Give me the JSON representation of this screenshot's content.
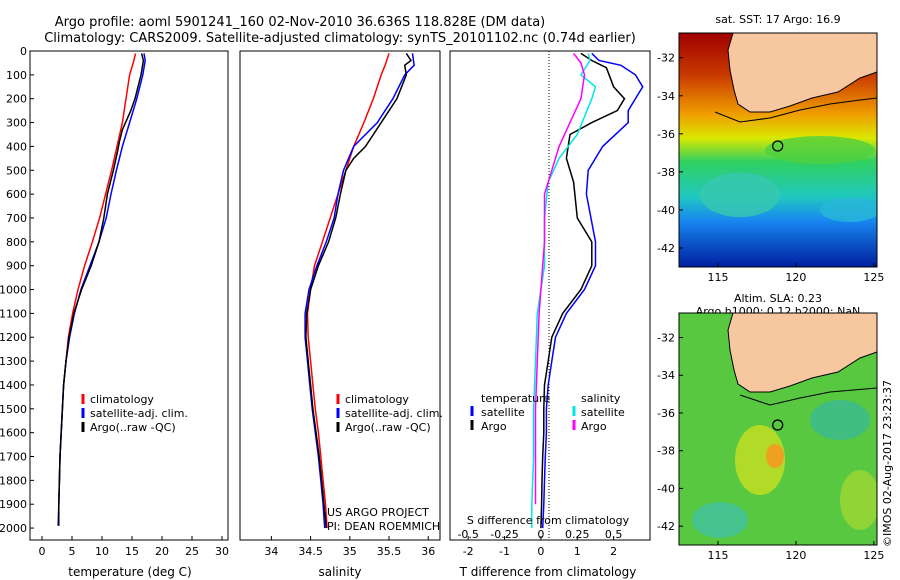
{
  "header": {
    "title": "Argo profile: aoml 5901241_160 02-Nov-2010 36.636S 118.828E (DM data)",
    "subtitle": "Climatology: CARS2009. Satellite-adjusted climatology: synTS_20101102.nc (0.74d earlier)"
  },
  "colors": {
    "climatology": "#ff0000",
    "satellite": "#0000ff",
    "argo": "#000000",
    "sal_satellite": "#00e6e6",
    "sal_argo": "#ff00ff",
    "land": "#f7c8a0"
  },
  "chart_data": [
    {
      "type": "line",
      "xlabel": "temperature (deg C)",
      "ylabel": "",
      "xlim": [
        -2,
        31
      ],
      "ylim": [
        2050,
        0
      ],
      "xticks": [
        "0",
        "5",
        "10",
        "15",
        "20",
        "25",
        "30"
      ],
      "yticks": [
        "0",
        "100",
        "200",
        "300",
        "400",
        "500",
        "600",
        "700",
        "800",
        "900",
        "1000",
        "1100",
        "1200",
        "1300",
        "1400",
        "1500",
        "1600",
        "1700",
        "1800",
        "1900",
        "2000"
      ],
      "legend": [
        "climatology",
        "satellite-adj. clim.",
        "Argo(..raw -QC)"
      ],
      "series": [
        {
          "name": "climatology",
          "points": [
            [
              15.6,
              10
            ],
            [
              15.2,
              50
            ],
            [
              14.6,
              100
            ],
            [
              14.0,
              200
            ],
            [
              13.4,
              300
            ],
            [
              12.5,
              400
            ],
            [
              11.6,
              500
            ],
            [
              10.6,
              600
            ],
            [
              9.6,
              700
            ],
            [
              8.4,
              800
            ],
            [
              7.1,
              900
            ],
            [
              6.0,
              1000
            ],
            [
              5.1,
              1100
            ],
            [
              4.4,
              1200
            ],
            [
              4.0,
              1300
            ],
            [
              3.6,
              1400
            ],
            [
              3.4,
              1500
            ],
            [
              3.2,
              1600
            ],
            [
              3.0,
              1700
            ],
            [
              2.9,
              1800
            ],
            [
              2.8,
              1900
            ],
            [
              2.8,
              1990
            ]
          ]
        },
        {
          "name": "satellite-adj. clim.",
          "points": [
            [
              17.0,
              10
            ],
            [
              17.2,
              40
            ],
            [
              16.8,
              100
            ],
            [
              15.8,
              200
            ],
            [
              14.6,
              300
            ],
            [
              13.4,
              400
            ],
            [
              12.4,
              500
            ],
            [
              11.5,
              600
            ],
            [
              10.7,
              700
            ],
            [
              9.5,
              800
            ],
            [
              8.0,
              900
            ],
            [
              6.5,
              1000
            ],
            [
              5.4,
              1100
            ],
            [
              4.6,
              1200
            ],
            [
              4.0,
              1300
            ],
            [
              3.6,
              1400
            ],
            [
              3.4,
              1500
            ],
            [
              3.2,
              1600
            ],
            [
              3.0,
              1700
            ],
            [
              2.9,
              1800
            ],
            [
              2.8,
              1900
            ],
            [
              2.8,
              1990
            ]
          ]
        },
        {
          "name": "Argo(..raw -QC)",
          "points": [
            [
              16.6,
              10
            ],
            [
              16.9,
              40
            ],
            [
              16.5,
              100
            ],
            [
              15.5,
              200
            ],
            [
              14.8,
              250
            ],
            [
              13.4,
              330
            ],
            [
              12.9,
              380
            ],
            [
              12.6,
              420
            ],
            [
              11.9,
              500
            ],
            [
              10.9,
              600
            ],
            [
              10.3,
              700
            ],
            [
              9.5,
              800
            ],
            [
              8.2,
              900
            ],
            [
              6.6,
              1000
            ],
            [
              5.3,
              1100
            ],
            [
              4.5,
              1200
            ],
            [
              4.0,
              1300
            ],
            [
              3.6,
              1400
            ],
            [
              3.4,
              1500
            ],
            [
              3.2,
              1600
            ],
            [
              3.0,
              1700
            ],
            [
              2.9,
              1800
            ],
            [
              2.8,
              1900
            ],
            [
              2.7,
              1990
            ]
          ]
        }
      ]
    },
    {
      "type": "line",
      "xlabel": "salinity",
      "ylabel": "",
      "xlim": [
        33.6,
        36.15
      ],
      "ylim": [
        2050,
        0
      ],
      "xticks": [
        "34",
        "34.5",
        "35",
        "35.5",
        "36"
      ],
      "legend": [
        "climatology",
        "satellite-adj. clim.",
        "Argo(..raw -QC)"
      ],
      "annotation": [
        "US ARGO PROJECT",
        "PI: DEAN ROEMMICH"
      ],
      "series": [
        {
          "name": "climatology",
          "points": [
            [
              35.5,
              10
            ],
            [
              35.45,
              60
            ],
            [
              35.4,
              100
            ],
            [
              35.3,
              200
            ],
            [
              35.18,
              300
            ],
            [
              35.05,
              400
            ],
            [
              34.95,
              500
            ],
            [
              34.85,
              600
            ],
            [
              34.75,
              700
            ],
            [
              34.65,
              800
            ],
            [
              34.55,
              900
            ],
            [
              34.5,
              1000
            ],
            [
              34.46,
              1100
            ],
            [
              34.47,
              1200
            ],
            [
              34.5,
              1300
            ],
            [
              34.53,
              1400
            ],
            [
              34.56,
              1500
            ],
            [
              34.6,
              1600
            ],
            [
              34.63,
              1700
            ],
            [
              34.66,
              1800
            ],
            [
              34.69,
              1900
            ],
            [
              34.71,
              2000
            ]
          ]
        },
        {
          "name": "satellite-adj. clim.",
          "points": [
            [
              35.8,
              10
            ],
            [
              35.82,
              60
            ],
            [
              35.7,
              100
            ],
            [
              35.55,
              200
            ],
            [
              35.35,
              300
            ],
            [
              35.05,
              400
            ],
            [
              34.92,
              500
            ],
            [
              34.85,
              600
            ],
            [
              34.8,
              700
            ],
            [
              34.7,
              800
            ],
            [
              34.58,
              900
            ],
            [
              34.48,
              1000
            ],
            [
              34.43,
              1100
            ],
            [
              34.43,
              1200
            ],
            [
              34.46,
              1300
            ],
            [
              34.49,
              1400
            ],
            [
              34.52,
              1500
            ],
            [
              34.56,
              1600
            ],
            [
              34.6,
              1700
            ],
            [
              34.63,
              1800
            ],
            [
              34.66,
              1900
            ],
            [
              34.68,
              2000
            ]
          ]
        },
        {
          "name": "Argo(..raw -QC)",
          "points": [
            [
              35.72,
              10
            ],
            [
              35.78,
              40
            ],
            [
              35.7,
              60
            ],
            [
              35.72,
              100
            ],
            [
              35.6,
              200
            ],
            [
              35.4,
              300
            ],
            [
              35.2,
              400
            ],
            [
              35.05,
              450
            ],
            [
              34.95,
              500
            ],
            [
              34.88,
              600
            ],
            [
              34.82,
              700
            ],
            [
              34.73,
              800
            ],
            [
              34.6,
              900
            ],
            [
              34.5,
              1000
            ],
            [
              34.45,
              1100
            ],
            [
              34.44,
              1200
            ],
            [
              34.47,
              1300
            ],
            [
              34.5,
              1400
            ],
            [
              34.53,
              1500
            ],
            [
              34.57,
              1600
            ],
            [
              34.61,
              1700
            ],
            [
              34.64,
              1800
            ],
            [
              34.67,
              1900
            ],
            [
              34.7,
              2000
            ]
          ]
        }
      ]
    },
    {
      "type": "line",
      "xlabel": "T difference from climatology",
      "toplabel": "S difference from climatology",
      "xlim": [
        -2.5,
        3.0
      ],
      "ylim": [
        2050,
        0
      ],
      "xticks": [
        "-2",
        "-1",
        "0",
        "1",
        "2"
      ],
      "sticks": [
        "-0.5",
        "-0.25",
        "0",
        "0.25",
        "0.5"
      ],
      "legend_headers": [
        "temperature",
        "salinity"
      ],
      "legend": [
        "satellite",
        "Argo",
        "satellite",
        "Argo"
      ],
      "series": [
        {
          "name": "satellite",
          "points": [
            [
              1.4,
              10
            ],
            [
              1.6,
              40
            ],
            [
              2.2,
              60
            ],
            [
              2.6,
              100
            ],
            [
              2.8,
              150
            ],
            [
              2.4,
              250
            ],
            [
              2.4,
              300
            ],
            [
              1.7,
              400
            ],
            [
              1.3,
              500
            ],
            [
              1.25,
              600
            ],
            [
              1.5,
              800
            ],
            [
              1.5,
              900
            ],
            [
              1.2,
              1000
            ],
            [
              0.7,
              1100
            ],
            [
              0.4,
              1200
            ],
            [
              0.3,
              1300
            ],
            [
              0.2,
              1400
            ],
            [
              0.15,
              1500
            ],
            [
              0.15,
              1600
            ],
            [
              0.12,
              1700
            ],
            [
              0.1,
              1800
            ],
            [
              0.08,
              1900
            ],
            [
              0.05,
              2000
            ]
          ]
        },
        {
          "name": "Argo",
          "points": [
            [
              1.1,
              10
            ],
            [
              1.4,
              40
            ],
            [
              1.8,
              70
            ],
            [
              2.0,
              150
            ],
            [
              2.3,
              200
            ],
            [
              2.1,
              250
            ],
            [
              1.4,
              300
            ],
            [
              0.8,
              350
            ],
            [
              0.7,
              450
            ],
            [
              0.9,
              550
            ],
            [
              1.0,
              700
            ],
            [
              1.4,
              800
            ],
            [
              1.4,
              900
            ],
            [
              1.1,
              1000
            ],
            [
              0.6,
              1100
            ],
            [
              0.3,
              1200
            ],
            [
              0.2,
              1300
            ],
            [
              0.1,
              1400
            ],
            [
              0.08,
              1500
            ],
            [
              0.08,
              1600
            ],
            [
              0.05,
              1700
            ],
            [
              0.03,
              1800
            ],
            [
              0.02,
              1900
            ],
            [
              0.0,
              2000
            ]
          ]
        },
        {
          "name": "satellite",
          "points": [
            [
              1.3,
              10
            ],
            [
              1.35,
              40
            ],
            [
              1.1,
              100
            ],
            [
              1.5,
              150
            ],
            [
              1.4,
              200
            ],
            [
              1.0,
              350
            ],
            [
              0.5,
              450
            ],
            [
              0.2,
              550
            ],
            [
              0.1,
              700
            ],
            [
              0.1,
              900
            ],
            [
              0.0,
              1000
            ],
            [
              -0.1,
              1100
            ],
            [
              -0.15,
              1300
            ],
            [
              -0.2,
              1500
            ],
            [
              -0.2,
              1700
            ],
            [
              -0.25,
              1900
            ],
            [
              -0.25,
              2000
            ]
          ]
        },
        {
          "name": "Argo",
          "points": [
            [
              0.9,
              10
            ],
            [
              1.1,
              50
            ],
            [
              1.2,
              100
            ],
            [
              1.1,
              200
            ],
            [
              0.8,
              300
            ],
            [
              0.5,
              400
            ],
            [
              0.3,
              500
            ],
            [
              0.1,
              600
            ],
            [
              0.1,
              700
            ],
            [
              0.1,
              800
            ],
            [
              0.05,
              900
            ],
            [
              0.0,
              1000
            ],
            [
              -0.05,
              1100
            ],
            [
              -0.1,
              1300
            ],
            [
              -0.15,
              1500
            ],
            [
              -0.15,
              1700
            ],
            [
              -0.15,
              1900
            ]
          ]
        }
      ]
    }
  ],
  "maps": {
    "sst": {
      "title": "sat. SST: 17 Argo: 16.9",
      "xticks": [
        "115",
        "120",
        "125"
      ],
      "yticks": [
        "-32",
        "-34",
        "-36",
        "-38",
        "-40",
        "-42"
      ],
      "argo_position": {
        "lon": 118.83,
        "lat": -36.64
      }
    },
    "sla": {
      "title1": "Altim. SLA: 0.23",
      "title2": "Argo h1000: 0.12 h2000: NaN",
      "xticks": [
        "115",
        "120",
        "125"
      ],
      "yticks": [
        "-32",
        "-34",
        "-36",
        "-38",
        "-40",
        "-42"
      ],
      "argo_position": {
        "lon": 118.83,
        "lat": -36.64
      }
    },
    "xlim": [
      112.5,
      125.2
    ],
    "ylim": [
      -43,
      -30.7
    ]
  },
  "footer": {
    "timestamp": "©IMOS 02-Aug-2017 23:23:37"
  }
}
